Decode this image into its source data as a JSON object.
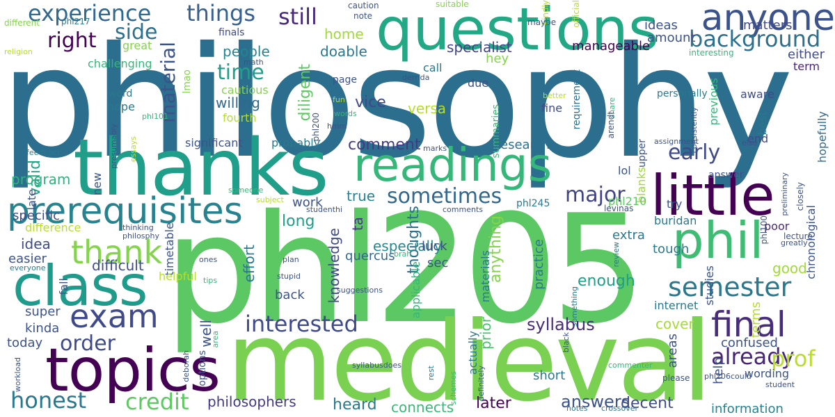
{
  "words": [
    {
      "text": "philosophy",
      "color": "#2c6e8e"
    },
    {
      "text": "phl205",
      "color": "#5cc863"
    },
    {
      "text": "medieval",
      "color": "#7ad151"
    },
    {
      "text": "questions",
      "color": "#22a884"
    },
    {
      "text": "thanks",
      "color": "#1f9e89"
    },
    {
      "text": "topics",
      "color": "#440154"
    },
    {
      "text": "class",
      "color": "#1e9b8a"
    },
    {
      "text": "little",
      "color": "#440154"
    },
    {
      "text": "readings",
      "color": "#35b779"
    },
    {
      "text": "phil",
      "color": "#3fbc73"
    },
    {
      "text": "anyone",
      "color": "#3b528b"
    },
    {
      "text": "prerequisites",
      "color": "#26828e"
    },
    {
      "text": "final",
      "color": "#472c7a"
    },
    {
      "text": "exam",
      "color": "#3e4a89"
    },
    {
      "text": "thank",
      "color": "#84d44b"
    },
    {
      "text": "semester",
      "color": "#2a788e"
    },
    {
      "text": "background",
      "color": "#2d708e"
    },
    {
      "text": "experience",
      "color": "#31688e"
    },
    {
      "text": "things",
      "color": "#355f8d"
    },
    {
      "text": "still",
      "color": "#482878"
    },
    {
      "text": "honest",
      "color": "#2a788e"
    },
    {
      "text": "credit",
      "color": "#5ec962"
    },
    {
      "text": "interested",
      "color": "#3e4a89"
    },
    {
      "text": "already",
      "color": "#482576"
    },
    {
      "text": "prof",
      "color": "#b8de29"
    },
    {
      "text": "sometimes",
      "color": "#31688e"
    },
    {
      "text": "major",
      "color": "#414487"
    },
    {
      "text": "material",
      "color": "#3b528b"
    },
    {
      "text": "order",
      "color": "#3e4a89"
    },
    {
      "text": "right",
      "color": "#440154"
    },
    {
      "text": "side",
      "color": "#2d708e"
    },
    {
      "text": "time",
      "color": "#1f9e89"
    },
    {
      "text": "early",
      "color": "#3e4a89"
    },
    {
      "text": "syllabus",
      "color": "#472c7a"
    },
    {
      "text": "answers",
      "color": "#3b528b"
    },
    {
      "text": "philosophers",
      "color": "#443a83"
    },
    {
      "text": "heard",
      "color": "#2a788e"
    },
    {
      "text": "connects",
      "color": "#38b977"
    },
    {
      "text": "later",
      "color": "#440154"
    },
    {
      "text": "decent",
      "color": "#3e4a89"
    },
    {
      "text": "information",
      "color": "#26828e"
    },
    {
      "text": "home",
      "color": "#a0da39"
    },
    {
      "text": "doable",
      "color": "#2a788e"
    },
    {
      "text": "people",
      "color": "#25848e"
    },
    {
      "text": "willing",
      "color": "#31688e"
    },
    {
      "text": "comment",
      "color": "#443983"
    },
    {
      "text": "diligent",
      "color": "#5ec962"
    },
    {
      "text": "vice",
      "color": "#3f4889"
    },
    {
      "text": "versa",
      "color": "#b5de2b"
    },
    {
      "text": "specialist",
      "color": "#414487"
    },
    {
      "text": "manageable",
      "color": "#440154"
    },
    {
      "text": "amount",
      "color": "#3b528b"
    },
    {
      "text": "ideas",
      "color": "#3b528b"
    },
    {
      "text": "matters",
      "color": "#3f4889"
    },
    {
      "text": "either",
      "color": "#3e4a89"
    },
    {
      "text": "term",
      "color": "#482475"
    },
    {
      "text": "research",
      "color": "#2e6f8e"
    },
    {
      "text": "requirement",
      "color": "#2c728e"
    },
    {
      "text": "valid",
      "color": "#20a486"
    },
    {
      "text": "program",
      "color": "#2eb37c"
    },
    {
      "text": "specific",
      "color": "#3e4a89"
    },
    {
      "text": "idea",
      "color": "#3e4a89"
    },
    {
      "text": "easier",
      "color": "#3b528b"
    },
    {
      "text": "difficult",
      "color": "#3e4a89"
    },
    {
      "text": "super",
      "color": "#3b528b"
    },
    {
      "text": "kinda",
      "color": "#3b528b"
    },
    {
      "text": "today",
      "color": "#3b528b"
    },
    {
      "text": "work",
      "color": "#3b528b"
    },
    {
      "text": "long",
      "color": "#1f9e89"
    },
    {
      "text": "true",
      "color": "#26828e"
    },
    {
      "text": "ta",
      "color": "#443983"
    },
    {
      "text": "thoughts",
      "color": "#2c728e"
    },
    {
      "text": "knowledge",
      "color": "#3e4a89"
    },
    {
      "text": "especially",
      "color": "#23898e"
    },
    {
      "text": "quercus",
      "color": "#31688e"
    },
    {
      "text": "sec",
      "color": "#3b528b"
    },
    {
      "text": "luck",
      "color": "#3e4a89"
    },
    {
      "text": "anything",
      "color": "#84d44b"
    },
    {
      "text": "practice",
      "color": "#2a788e"
    },
    {
      "text": "enough",
      "color": "#1f9e89"
    },
    {
      "text": "effort",
      "color": "#2a788e"
    },
    {
      "text": "back",
      "color": "#3b528b"
    },
    {
      "text": "well",
      "color": "#3b528b"
    },
    {
      "text": "prior",
      "color": "#4ac16d"
    },
    {
      "text": "cover",
      "color": "#a5db36"
    },
    {
      "text": "confused",
      "color": "#3b528b"
    },
    {
      "text": "help",
      "color": "#3b528b"
    },
    {
      "text": "wording",
      "color": "#3b528b"
    },
    {
      "text": "short",
      "color": "#2a788e"
    },
    {
      "text": "good",
      "color": "#a0da39"
    },
    {
      "text": "studies",
      "color": "#3b528b"
    },
    {
      "text": "areas",
      "color": "#3b528b"
    },
    {
      "text": "tough",
      "color": "#2a788e"
    },
    {
      "text": "extra",
      "color": "#2a788e"
    },
    {
      "text": "buridan",
      "color": "#2a788e"
    },
    {
      "text": "poor",
      "color": "#482878"
    },
    {
      "text": "internet",
      "color": "#2a788e"
    },
    {
      "text": "terms",
      "color": "#b5de2b"
    },
    {
      "text": "chronological",
      "color": "#3b528b"
    },
    {
      "text": "hopefully",
      "color": "#31688e"
    },
    {
      "text": "end",
      "color": "#3e4a89"
    },
    {
      "text": "best",
      "color": "#2a788e"
    },
    {
      "text": "aware",
      "color": "#3e4a89"
    },
    {
      "text": "previous",
      "color": "#35b779"
    },
    {
      "text": "personally",
      "color": "#2a788e"
    },
    {
      "text": "upper",
      "color": "#3b528b"
    },
    {
      "text": "blanks",
      "color": "#a0da39"
    },
    {
      "text": "answer",
      "color": "#3b528b"
    },
    {
      "text": "lol",
      "color": "#3b528b"
    },
    {
      "text": "phl210",
      "color": "#5ec962"
    },
    {
      "text": "phl245",
      "color": "#2a788e"
    },
    {
      "text": "try",
      "color": "#3b528b"
    },
    {
      "text": "fine",
      "color": "#3e4a89"
    },
    {
      "text": "summaries",
      "color": "#35b779"
    },
    {
      "text": "due",
      "color": "#3b528b"
    },
    {
      "text": "hey",
      "color": "#84d44b"
    },
    {
      "text": "call",
      "color": "#2a788e"
    },
    {
      "text": "page",
      "color": "#3b528b"
    },
    {
      "text": "finals",
      "color": "#3e4a89"
    },
    {
      "text": "great",
      "color": "#84d44b"
    },
    {
      "text": "lmao",
      "color": "#84d44b"
    },
    {
      "text": "hope",
      "color": "#2a788e"
    },
    {
      "text": "word",
      "color": "#2a788e"
    },
    {
      "text": "cautious",
      "color": "#84d44b"
    },
    {
      "text": "fourth",
      "color": "#b5de2b"
    },
    {
      "text": "challenging",
      "color": "#35b779"
    },
    {
      "text": "significant",
      "color": "#3b528b"
    },
    {
      "text": "probably",
      "color": "#2a788e"
    },
    {
      "text": "late",
      "color": "#3b528b"
    },
    {
      "text": "new",
      "color": "#3b528b"
    },
    {
      "text": "timetable",
      "color": "#3b528b"
    },
    {
      "text": "difference",
      "color": "#b5de2b"
    },
    {
      "text": "fall",
      "color": "#3b528b"
    },
    {
      "text": "helpful",
      "color": "#b5de2b"
    },
    {
      "text": "options",
      "color": "#3b528b"
    },
    {
      "text": "applicable",
      "color": "#35b779"
    },
    {
      "text": "actually",
      "color": "#2a788e"
    },
    {
      "text": "materials",
      "color": "#2a788e"
    },
    {
      "text": "caution",
      "color": "#3b528b"
    },
    {
      "text": "note",
      "color": "#3b528b"
    },
    {
      "text": "suitable",
      "color": "#84d44b"
    },
    {
      "text": "official",
      "color": "#b5de2b"
    },
    {
      "text": "kindly",
      "color": "#b5de2b"
    },
    {
      "text": "maybe",
      "color": "#3b528b"
    },
    {
      "text": "interesting",
      "color": "#35b779"
    },
    {
      "text": "different",
      "color": "#84d44b"
    },
    {
      "text": "phl217",
      "color": "#2a788e"
    },
    {
      "text": "religion",
      "color": "#b5de2b"
    },
    {
      "text": "math",
      "color": "#3b528b"
    },
    {
      "text": "derrida",
      "color": "#3b528b"
    },
    {
      "text": "fun",
      "color": "#b5de2b"
    },
    {
      "text": "words",
      "color": "#35b779"
    },
    {
      "text": "phl101",
      "color": "#35b779"
    },
    {
      "text": "phl200",
      "color": "#3b528b"
    },
    {
      "text": "hmm",
      "color": "#3b528b"
    },
    {
      "text": "better",
      "color": "#b5de2b"
    },
    {
      "text": "share",
      "color": "#35b779"
    },
    {
      "text": "arendt",
      "color": "#3b528b"
    },
    {
      "text": "consistently",
      "color": "#3b528b"
    },
    {
      "text": "else",
      "color": "#3b528b"
    },
    {
      "text": "assignment",
      "color": "#3b528b"
    },
    {
      "text": "marks",
      "color": "#3b528b"
    },
    {
      "text": "essays",
      "color": "#b5de2b"
    },
    {
      "text": "presumably",
      "color": "#3b528b"
    },
    {
      "text": "feedback",
      "color": "#2a788e"
    },
    {
      "text": "philosphy",
      "color": "#3b528b"
    },
    {
      "text": "thinking",
      "color": "#3b528b"
    },
    {
      "text": "everyone",
      "color": "#2a788e"
    },
    {
      "text": "ones",
      "color": "#3b528b"
    },
    {
      "text": "plan",
      "color": "#3b528b"
    },
    {
      "text": "stupid",
      "color": "#3b528b"
    },
    {
      "text": "tips",
      "color": "#35b779"
    },
    {
      "text": "suggestions",
      "color": "#3b528b"
    },
    {
      "text": "brah",
      "color": "#35b779"
    },
    {
      "text": "area",
      "color": "#35b779"
    },
    {
      "text": "deborah",
      "color": "#3b528b"
    },
    {
      "text": "workload",
      "color": "#3b528b"
    },
    {
      "text": "someone",
      "color": "#35b779"
    },
    {
      "text": "subject",
      "color": "#b5de2b"
    },
    {
      "text": "studenthi",
      "color": "#3b528b"
    },
    {
      "text": "comments",
      "color": "#3b528b"
    },
    {
      "text": "levinas",
      "color": "#3b528b"
    },
    {
      "text": "phl100",
      "color": "#3b528b"
    },
    {
      "text": "closely",
      "color": "#3b528b"
    },
    {
      "text": "preliminary",
      "color": "#3b528b"
    },
    {
      "text": "lecture",
      "color": "#3b528b"
    },
    {
      "text": "greatly",
      "color": "#3b528b"
    },
    {
      "text": "review",
      "color": "#2a788e"
    },
    {
      "text": "something",
      "color": "#2a788e"
    },
    {
      "text": "black",
      "color": "#3b528b"
    },
    {
      "text": "schemes",
      "color": "#35b779"
    },
    {
      "text": "syllabusdoes",
      "color": "#3b528b"
    },
    {
      "text": "rest",
      "color": "#2a788e"
    },
    {
      "text": "definitely",
      "color": "#3b528b"
    },
    {
      "text": "notes",
      "color": "#2a788e"
    },
    {
      "text": "crossover",
      "color": "#2a788e"
    },
    {
      "text": "commenter",
      "color": "#35b779"
    },
    {
      "text": "please",
      "color": "#3b528b"
    },
    {
      "text": "phl206could",
      "color": "#3b528b"
    },
    {
      "text": "student",
      "color": "#3b528b"
    }
  ]
}
